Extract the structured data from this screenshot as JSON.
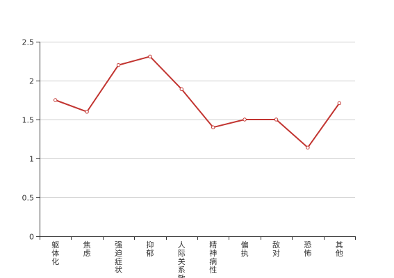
{
  "chart_data": {
    "type": "line",
    "categories": [
      "躯体化",
      "焦虑",
      "强迫症状",
      "抑郁",
      "人际关系敏感",
      "精神病性",
      "偏执",
      "敌对",
      "恐怖",
      "其他"
    ],
    "series": [
      {
        "values": [
          1.75,
          1.6,
          2.2,
          2.31,
          1.89,
          1.4,
          1.5,
          1.5,
          1.14,
          1.71
        ]
      }
    ],
    "y_ticks": [
      "0",
      "0.5",
      "1",
      "1.5",
      "2",
      "2.5"
    ],
    "ylim": [
      0,
      2.5
    ],
    "grid": "horizontal",
    "line_color": "#c23531",
    "grid_color": "#cccccc",
    "axis_color": "#333333"
  }
}
